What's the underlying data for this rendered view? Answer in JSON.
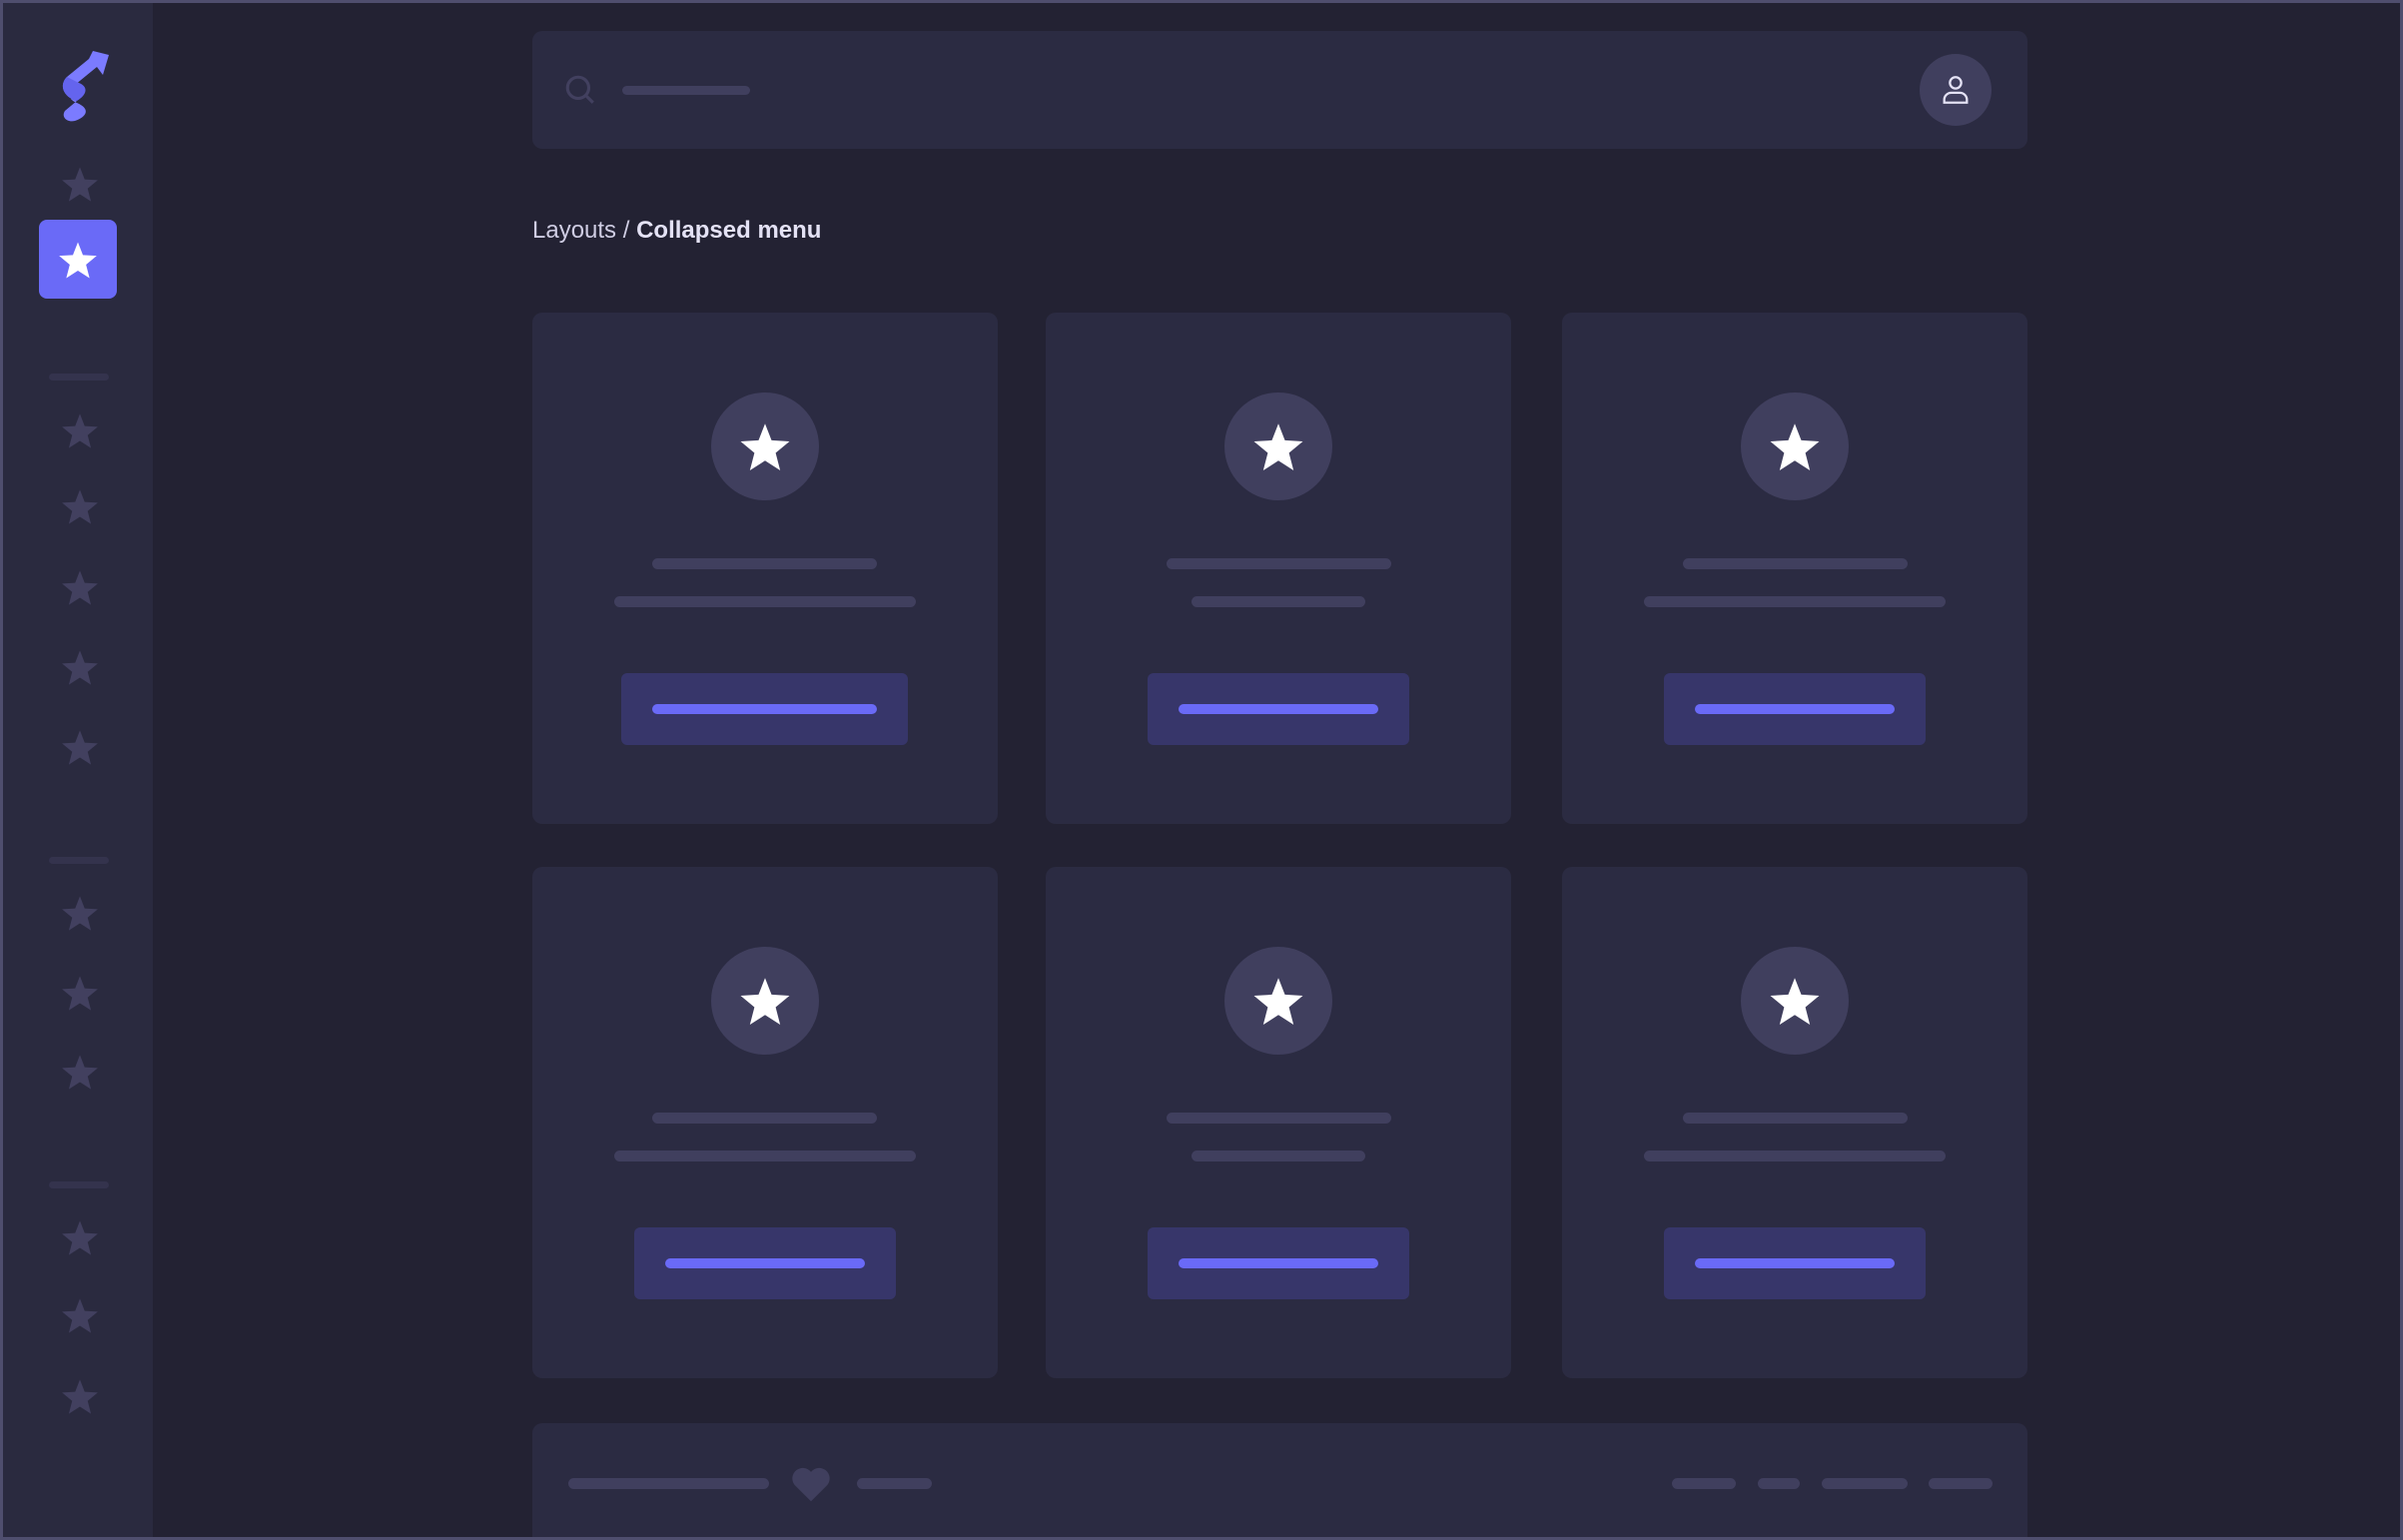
{
  "breadcrumb": {
    "parent": "Layouts",
    "separator": " / ",
    "current": "Collapsed menu"
  },
  "colors": {
    "accent": "#6a6af7",
    "background": "#232233",
    "panel": "#2b2b42",
    "sidebar": "#2a2a3f",
    "skeleton": "#403f5e",
    "button": "#37366a"
  },
  "sidebar": {
    "logo": "brand-s-logo",
    "items_icon": "star-icon",
    "active_index": 1
  },
  "topbar": {
    "search_icon": "search-icon",
    "avatar_icon": "user-icon"
  },
  "cards": [
    {
      "icon": "star-icon"
    },
    {
      "icon": "star-icon"
    },
    {
      "icon": "star-icon"
    },
    {
      "icon": "star-icon"
    },
    {
      "icon": "star-icon"
    },
    {
      "icon": "star-icon"
    }
  ],
  "footer": {
    "icon": "heart-icon"
  }
}
